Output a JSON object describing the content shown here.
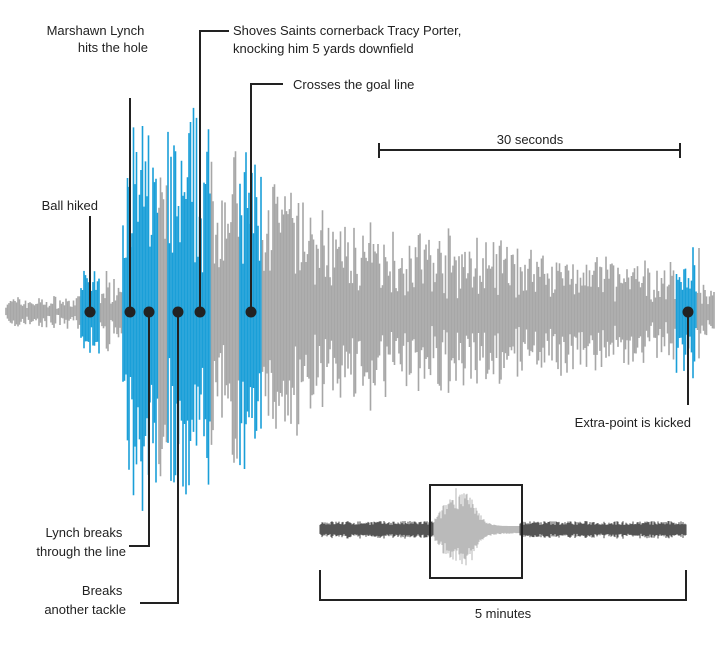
{
  "chart_data": {
    "type": "area",
    "colors": {
      "background": "#ffffff",
      "waveform": "#a7a7a7",
      "play": "#1a9fd8",
      "marker": "#222222",
      "context_wave": "#555555",
      "context_highlight": "#bbbbbb"
    },
    "annotations": [
      {
        "id": "ball-hiked",
        "text": [
          "Ball hiked"
        ]
      },
      {
        "id": "marshawn-lynch-hits-hole",
        "text": [
          "Marshawn Lynch",
          "hits the hole"
        ]
      },
      {
        "id": "lynch-breaks-line",
        "text": [
          "Lynch breaks",
          "through the line"
        ]
      },
      {
        "id": "breaks-another-tackle",
        "text": [
          "Breaks",
          "another tackle"
        ]
      },
      {
        "id": "shoves-tracy-porter",
        "text": [
          "Shoves Saints cornerback Tracy Porter,",
          "knocking him 5 yards downfield"
        ]
      },
      {
        "id": "crosses-goal-line",
        "text": [
          "Crosses the goal line"
        ]
      },
      {
        "id": "extra-point-kicked",
        "text": [
          "Extra-point is kicked"
        ]
      }
    ],
    "scale_bars": [
      {
        "id": "thirty-seconds",
        "label": "30 seconds"
      },
      {
        "id": "five-minutes",
        "label": "5 minutes"
      }
    ]
  }
}
